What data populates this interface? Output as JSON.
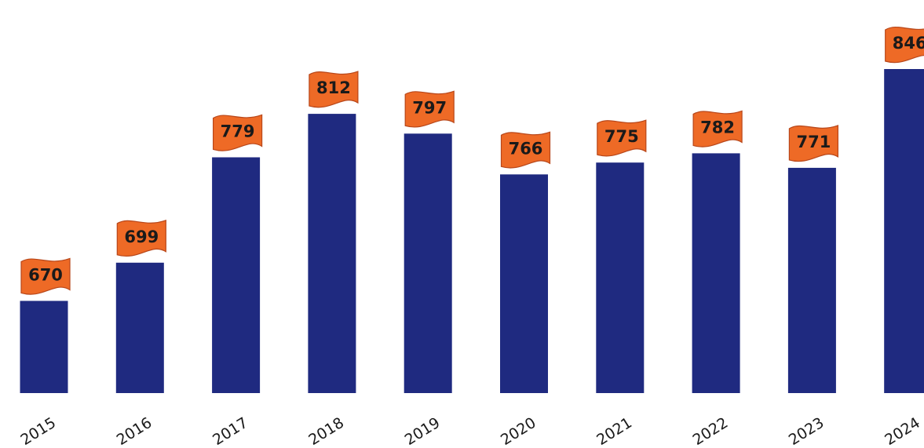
{
  "chart_data": {
    "type": "bar",
    "categories": [
      "2015",
      "2016",
      "2017",
      "2018",
      "2019",
      "2020",
      "2021",
      "2022",
      "2023",
      "2024"
    ],
    "values": [
      670,
      699,
      779,
      812,
      797,
      766,
      775,
      782,
      771,
      846
    ],
    "data_labels": [
      "670",
      "699",
      "779",
      "812",
      "797",
      "766",
      "775",
      "782",
      "771",
      "846"
    ],
    "title": "",
    "xlabel": "",
    "ylabel": "",
    "ylim": [
      600,
      850
    ],
    "grid": false,
    "legend": "none",
    "colors": {
      "bar": "#1f2a80",
      "label_flag": "#ee6a26",
      "label_flag_edge": "#b8471a",
      "label_text": "#1a1a1a",
      "tick_text": "#1a1a1a"
    }
  }
}
